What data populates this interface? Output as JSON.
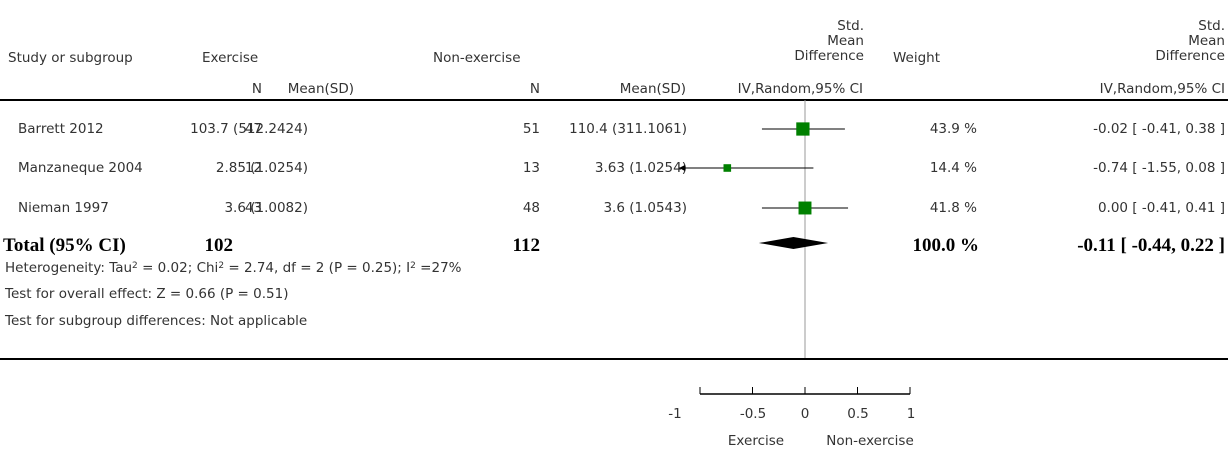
{
  "header": {
    "study_col": "Study or subgroup",
    "exercise": "Exercise",
    "non_exercise": "Non-exercise",
    "smd_std": "Std.",
    "smd_mean": "Mean",
    "smd_diff": "Difference",
    "weight": "Weight",
    "n": "N",
    "mean_sd": "Mean(SD)",
    "ci_method": "IV,Random,95% CI"
  },
  "rows": [
    {
      "study": "Barrett 2012",
      "ex_n": "47",
      "ex_mean_sd": "103.7 (512.2424)",
      "non_n": "51",
      "non_mean_sd": "110.4 (311.1061)",
      "weight": "43.9 %",
      "ci": "-0.02 [ -0.41, 0.38 ]"
    },
    {
      "study": "Manzaneque 2004",
      "ex_n": "12",
      "ex_mean_sd": "2.85 (1.0254)",
      "non_n": "13",
      "non_mean_sd": "3.63 (1.0254)",
      "weight": "14.4 %",
      "ci": "-0.74 [ -1.55, 0.08 ]"
    },
    {
      "study": "Nieman 1997",
      "ex_n": "43",
      "ex_mean_sd": "3.6 (1.0082)",
      "non_n": "48",
      "non_mean_sd": "3.6 (1.0543)",
      "weight": "41.8 %",
      "ci": "0.00 [ -0.41, 0.41 ]"
    }
  ],
  "total": {
    "label": "Total (95% CI)",
    "ex_n": "102",
    "non_n": "112",
    "weight": "100.0 %",
    "ci": "-0.11 [ -0.44, 0.22 ]"
  },
  "heterogeneity": {
    "prefix": "Heterogeneity: Tau",
    "tau_rest": " = 0.02; Chi",
    "chi_rest": " = 2.74, df = 2 (P = 0.25); I",
    "i_rest": " =27%",
    "sup": "2"
  },
  "overall_effect": "Test for overall effect: Z = 0.66 (P = 0.51)",
  "subgroup_diff": "Test for subgroup differences: Not applicable",
  "axis": {
    "ticks": [
      "-1",
      "-0.5",
      "0",
      "0.5",
      "1"
    ],
    "left_label": "Exercise",
    "right_label": "Non-exercise"
  },
  "colors": {
    "marker": "#008000",
    "diamond": "#000000"
  },
  "chart_data": {
    "type": "forest",
    "xlim": [
      -1,
      1
    ],
    "tick_values": [
      -1,
      -0.5,
      0,
      0.5,
      1
    ],
    "studies": [
      {
        "name": "Barrett 2012",
        "smd": -0.02,
        "lower": -0.41,
        "upper": 0.38,
        "weight": 43.9
      },
      {
        "name": "Manzaneque 2004",
        "smd": -0.74,
        "lower": -1.55,
        "upper": 0.08,
        "weight": 14.4
      },
      {
        "name": "Nieman 1997",
        "smd": 0.0,
        "lower": -0.41,
        "upper": 0.41,
        "weight": 41.8
      }
    ],
    "pooled": {
      "smd": -0.11,
      "lower": -0.44,
      "upper": 0.22
    }
  }
}
